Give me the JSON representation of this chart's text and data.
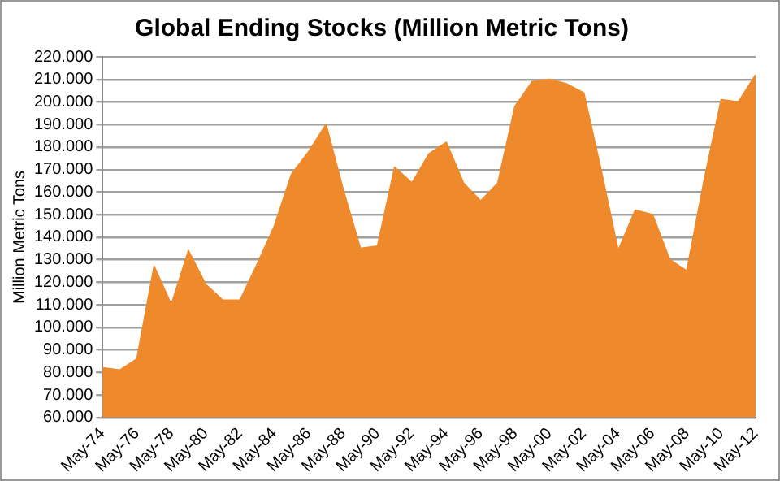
{
  "chart_data": {
    "type": "area",
    "title": "Global Ending Stocks (Million Metric Tons)",
    "ylabel": "Million Metric Tons",
    "categories": [
      "May-74",
      null,
      "May-76",
      null,
      "May-78",
      null,
      "May-80",
      null,
      "May-82",
      null,
      "May-84",
      null,
      "May-86",
      null,
      "May-88",
      null,
      "May-90",
      null,
      "May-92",
      null,
      "May-94",
      null,
      "May-96",
      null,
      "May-98",
      null,
      "May-00",
      null,
      "May-02",
      null,
      "May-04",
      null,
      "May-06",
      null,
      "May-08",
      null,
      "May-10",
      null,
      "May-12"
    ],
    "series": [
      {
        "color": "#ef8a2c",
        "values": [
          82,
          81,
          86,
          127,
          110,
          134,
          119,
          112,
          112,
          128,
          145,
          168,
          178,
          190,
          161,
          135,
          136,
          171,
          164,
          177,
          182,
          164,
          156,
          164,
          198,
          209,
          210,
          208,
          204,
          170,
          134,
          152,
          150,
          130,
          125,
          165,
          201,
          200,
          212
        ]
      }
    ],
    "ylim": [
      60,
      220
    ],
    "yticks": [
      {
        "value": 60,
        "label": "60.000"
      },
      {
        "value": 70,
        "label": "70.000"
      },
      {
        "value": 80,
        "label": "80.000"
      },
      {
        "value": 90,
        "label": "90.000"
      },
      {
        "value": 100,
        "label": "100.000"
      },
      {
        "value": 110,
        "label": "110.000"
      },
      {
        "value": 120,
        "label": "120.000"
      },
      {
        "value": 130,
        "label": "130.000"
      },
      {
        "value": 140,
        "label": "140.000"
      },
      {
        "value": 150,
        "label": "150.000"
      },
      {
        "value": 160,
        "label": "160.000"
      },
      {
        "value": 170,
        "label": "170.000"
      },
      {
        "value": 180,
        "label": "180.000"
      },
      {
        "value": 190,
        "label": "190.000"
      },
      {
        "value": 200,
        "label": "200.000"
      },
      {
        "value": 210,
        "label": "210.000"
      },
      {
        "value": 220,
        "label": "220.000"
      }
    ],
    "grid": "y",
    "legend": false
  }
}
